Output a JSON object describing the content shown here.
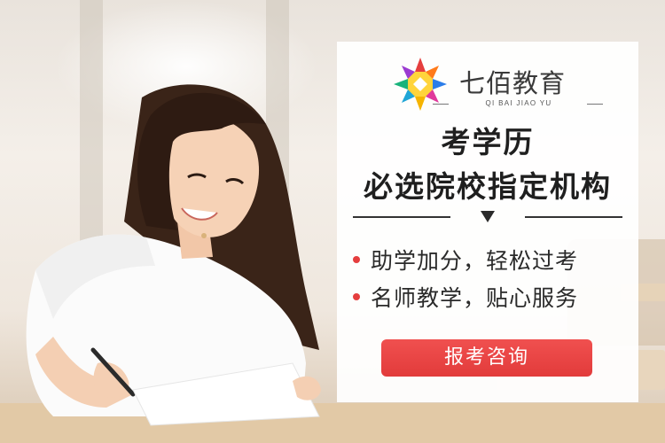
{
  "brand": {
    "name": "七佰教育",
    "subtitle": "QI BAI JIAO YU",
    "logo_icon": "starburst-logo-icon"
  },
  "headline": {
    "line1": "考学历",
    "line2": "必选院校指定机构"
  },
  "bullets": [
    {
      "text": "助学加分，轻松过考"
    },
    {
      "text": "名师教学，贴心服务"
    }
  ],
  "cta": {
    "label": "报考咨询"
  },
  "colors": {
    "accent": "#e53e3e",
    "card_bg": "#ffffff",
    "text_dark": "#1f1f1f"
  }
}
